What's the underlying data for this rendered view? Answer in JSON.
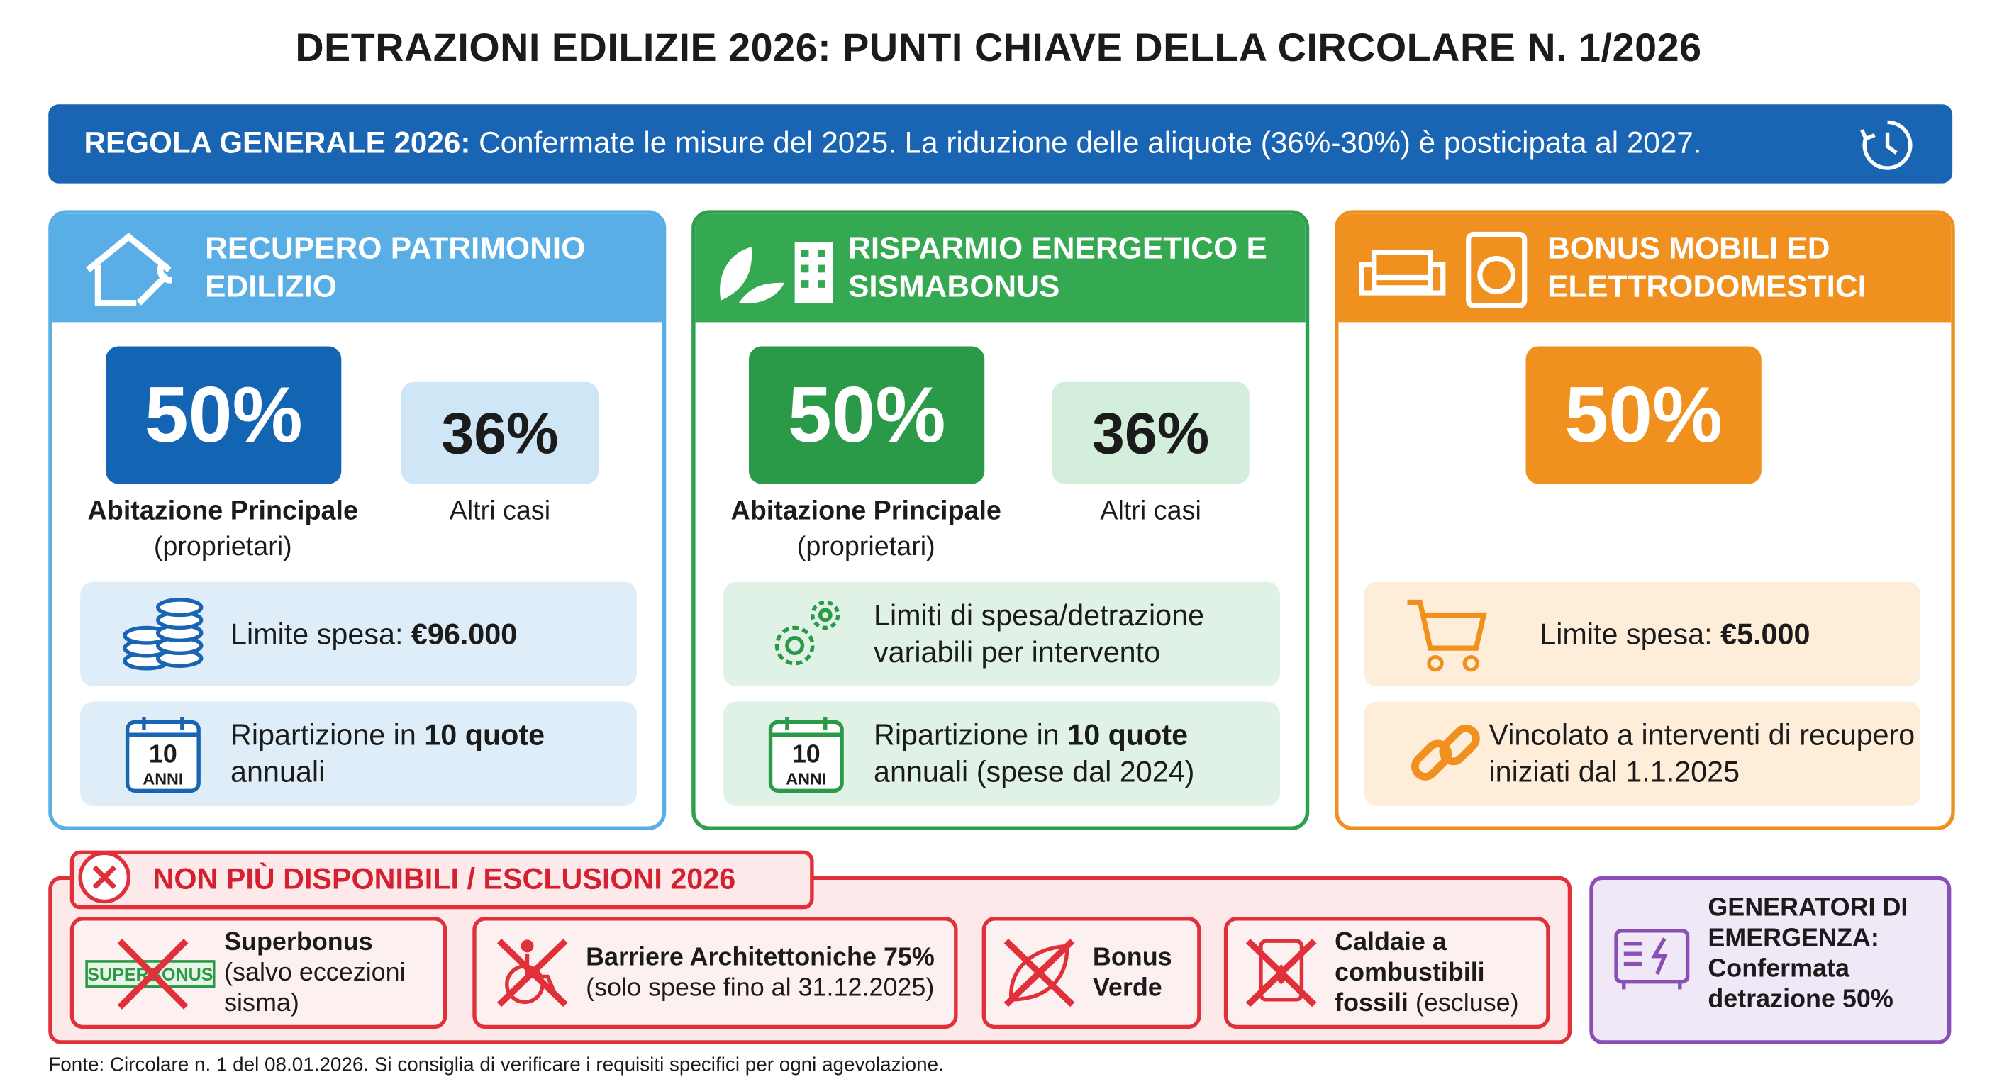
{
  "title": "DETRAZIONI EDILIZIE 2026: PUNTI CHIAVE DELLA CIRCOLARE N. 1/2026",
  "banner": {
    "label": "REGOLA GENERALE 2026:",
    "text": "Confermate le misure del 2025. La riduzione delle aliquote (36%-30%) è posticipata al 2027."
  },
  "cards": [
    {
      "title": "RECUPERO PATRIMONIO EDILIZIO",
      "main_rate": "50%",
      "main_label": "Abitazione Principale",
      "main_note": "(proprietari)",
      "alt_rate": "36%",
      "alt_label": "Altri casi",
      "items": [
        [
          {
            "text": "Limite spesa: "
          },
          {
            "text": "€96.000",
            "bold": true
          }
        ],
        [
          {
            "text": "Ripartizione in "
          },
          {
            "text": "10 quote",
            "bold": true
          },
          {
            "text": " annuali"
          }
        ]
      ],
      "calendar": {
        "number": "10",
        "unit": "ANNI"
      }
    },
    {
      "title": "RISPARMIO ENERGETICO E SISMABONUS",
      "main_rate": "50%",
      "main_label": "Abitazione Principale",
      "main_note": "(proprietari)",
      "alt_rate": "36%",
      "alt_label": "Altri casi",
      "items": [
        [
          {
            "text": "Limiti di spesa/detrazione variabili per intervento"
          }
        ],
        [
          {
            "text": "Ripartizione in "
          },
          {
            "text": "10 quote",
            "bold": true
          },
          {
            "text": " annuali (spese dal 2024)"
          }
        ]
      ],
      "calendar": {
        "number": "10",
        "unit": "ANNI"
      }
    },
    {
      "title": "BONUS MOBILI ED ELETTRODOMESTICI",
      "main_rate": "50%",
      "items": [
        [
          {
            "text": "Limite spesa: "
          },
          {
            "text": "€5.000",
            "bold": true
          }
        ],
        [
          {
            "text": "Vincolato a interventi di recupero iniziati dal 1.1.2025"
          }
        ]
      ]
    }
  ],
  "exclusions": {
    "title": "NON PIÙ DISPONIBILI / ESCLUSIONI 2026",
    "superbonus_logo": "SUPERBONUS",
    "items": [
      {
        "name": "Superbonus",
        "note": "(salvo eccezioni sisma)"
      },
      {
        "name": "Barriere Architettoniche 75%",
        "note": "(solo spese fino al 31.12.2025)"
      },
      {
        "name": "Bonus Verde"
      },
      {
        "name": "Caldaie a combustibili fossili",
        "note": "(escluse)"
      }
    ]
  },
  "generators": "GENERATORI DI EMERGENZA: Confermata detrazione 50%",
  "source": "Fonte: Circolare n. 1 del 08.01.2026. Si consiglia di verificare i requisiti specifici per ogni agevolazione."
}
